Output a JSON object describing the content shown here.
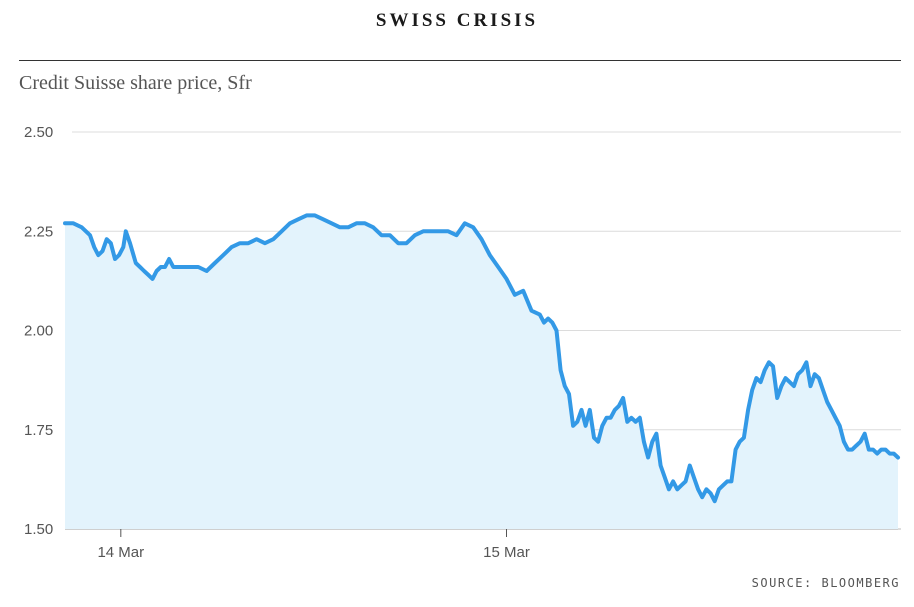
{
  "header": {
    "title": "SWISS CRISIS"
  },
  "chart_data": {
    "type": "area",
    "title": "SWISS CRISIS",
    "subtitle": "Credit Suisse share price, Sfr",
    "source": "SOURCE: BLOOMBERG",
    "xlabel": "",
    "ylabel": "",
    "ylim": [
      1.5,
      2.5
    ],
    "yticks": [
      1.5,
      1.75,
      2.0,
      2.25,
      2.5
    ],
    "ytick_labels": [
      "1.50",
      "1.75",
      "2.00",
      "2.25",
      "2.50"
    ],
    "xticks": [
      {
        "label": "14 Mar",
        "x": 0.067
      },
      {
        "label": "15 Mar",
        "x": 0.53
      }
    ],
    "x_range": [
      0,
      1
    ],
    "grid": true,
    "line_color": "#3399e6",
    "fill_color": "#e3f3fc",
    "series": [
      {
        "x": [
          0,
          0.01,
          0.02,
          0.03,
          0.035,
          0.04,
          0.045,
          0.05,
          0.055,
          0.06,
          0.065,
          0.07,
          0.073,
          0.078,
          0.085,
          0.09,
          0.095,
          0.1,
          0.105,
          0.11,
          0.115,
          0.12,
          0.125,
          0.13,
          0.14,
          0.15,
          0.16,
          0.17,
          0.18,
          0.19,
          0.2,
          0.21,
          0.22,
          0.23,
          0.24,
          0.25,
          0.26,
          0.27,
          0.28,
          0.29,
          0.3,
          0.31,
          0.32,
          0.33,
          0.34,
          0.35,
          0.36,
          0.37,
          0.38,
          0.39,
          0.4,
          0.41,
          0.42,
          0.43,
          0.44,
          0.45,
          0.46,
          0.47,
          0.48,
          0.49,
          0.5,
          0.51,
          0.52,
          0.53,
          0.54,
          0.55,
          0.56,
          0.57,
          0.575,
          0.58,
          0.585,
          0.59,
          0.595,
          0.6,
          0.605,
          0.61,
          0.615,
          0.62,
          0.625,
          0.63,
          0.635,
          0.64,
          0.645,
          0.65,
          0.655,
          0.66,
          0.665,
          0.67,
          0.675,
          0.68,
          0.685,
          0.69,
          0.695,
          0.7,
          0.705,
          0.71,
          0.715,
          0.72,
          0.725,
          0.73,
          0.735,
          0.74,
          0.745,
          0.75,
          0.755,
          0.76,
          0.765,
          0.77,
          0.775,
          0.78,
          0.785,
          0.79,
          0.795,
          0.8,
          0.805,
          0.81,
          0.815,
          0.82,
          0.825,
          0.83,
          0.835,
          0.84,
          0.845,
          0.85,
          0.855,
          0.86,
          0.865,
          0.87,
          0.875,
          0.88,
          0.885,
          0.89,
          0.895,
          0.9,
          0.905,
          0.91,
          0.915,
          0.92,
          0.925,
          0.93,
          0.935,
          0.94,
          0.945,
          0.95,
          0.955,
          0.96,
          0.965,
          0.97,
          0.975,
          0.98,
          0.985,
          0.99,
          0.995,
          1.0
        ],
        "y": [
          2.27,
          2.27,
          2.26,
          2.24,
          2.21,
          2.19,
          2.2,
          2.23,
          2.22,
          2.18,
          2.19,
          2.21,
          2.25,
          2.22,
          2.17,
          2.16,
          2.15,
          2.14,
          2.13,
          2.15,
          2.16,
          2.16,
          2.18,
          2.16,
          2.16,
          2.16,
          2.16,
          2.15,
          2.17,
          2.19,
          2.21,
          2.22,
          2.22,
          2.23,
          2.22,
          2.23,
          2.25,
          2.27,
          2.28,
          2.29,
          2.29,
          2.28,
          2.27,
          2.26,
          2.26,
          2.27,
          2.27,
          2.26,
          2.24,
          2.24,
          2.22,
          2.22,
          2.24,
          2.25,
          2.25,
          2.25,
          2.25,
          2.24,
          2.27,
          2.26,
          2.23,
          2.19,
          2.16,
          2.13,
          2.09,
          2.1,
          2.05,
          2.04,
          2.02,
          2.03,
          2.02,
          2.0,
          1.9,
          1.86,
          1.84,
          1.76,
          1.77,
          1.8,
          1.76,
          1.8,
          1.73,
          1.72,
          1.76,
          1.78,
          1.78,
          1.8,
          1.81,
          1.83,
          1.77,
          1.78,
          1.77,
          1.78,
          1.72,
          1.68,
          1.72,
          1.74,
          1.66,
          1.63,
          1.6,
          1.62,
          1.6,
          1.61,
          1.62,
          1.66,
          1.63,
          1.6,
          1.58,
          1.6,
          1.59,
          1.57,
          1.6,
          1.61,
          1.62,
          1.62,
          1.7,
          1.72,
          1.73,
          1.8,
          1.85,
          1.88,
          1.87,
          1.9,
          1.92,
          1.91,
          1.83,
          1.86,
          1.88,
          1.87,
          1.86,
          1.89,
          1.9,
          1.92,
          1.86,
          1.89,
          1.88,
          1.85,
          1.82,
          1.8,
          1.78,
          1.76,
          1.72,
          1.7,
          1.7,
          1.71,
          1.72,
          1.74,
          1.7,
          1.7,
          1.69,
          1.7,
          1.7,
          1.69,
          1.69,
          1.68
        ]
      }
    ]
  }
}
